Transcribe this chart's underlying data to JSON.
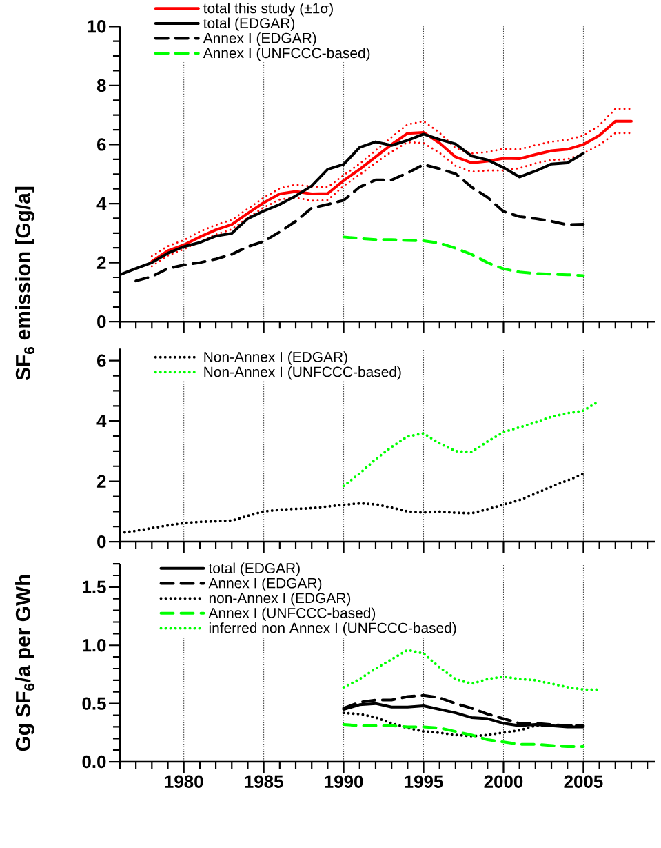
{
  "chart_data": [
    {
      "type": "line",
      "ylabel": "SF$_{6}$ emission [Gg/a]",
      "xlim": [
        1976,
        2009.5
      ],
      "ylim": [
        0,
        10
      ],
      "grid": "x",
      "legend": "top left",
      "tick_labels": "y",
      "xticks": [
        {
          "value": 1976,
          "label": null
        },
        {
          "value": 1977,
          "label": null
        },
        {
          "value": 1978,
          "label": null
        },
        {
          "value": 1979,
          "label": null
        },
        1980,
        {
          "value": 1981,
          "label": null
        },
        {
          "value": 1982,
          "label": null
        },
        {
          "value": 1983,
          "label": null
        },
        {
          "value": 1984,
          "label": null
        },
        1985,
        {
          "value": 1986,
          "label": null
        },
        {
          "value": 1987,
          "label": null
        },
        {
          "value": 1988,
          "label": null
        },
        {
          "value": 1989,
          "label": null
        },
        1990,
        {
          "value": 1991,
          "label": null
        },
        {
          "value": 1992,
          "label": null
        },
        {
          "value": 1993,
          "label": null
        },
        {
          "value": 1994,
          "label": null
        },
        1995,
        {
          "value": 1996,
          "label": null
        },
        {
          "value": 1997,
          "label": null
        },
        {
          "value": 1998,
          "label": null
        },
        {
          "value": 1999,
          "label": null
        },
        2000,
        {
          "value": 2001,
          "label": null
        },
        {
          "value": 2002,
          "label": null
        },
        {
          "value": 2003,
          "label": null
        },
        {
          "value": 2004,
          "label": null
        },
        2005,
        {
          "value": 2006,
          "label": null
        },
        {
          "value": 2007,
          "label": null
        },
        {
          "value": 2008,
          "label": null
        },
        {
          "value": 2009,
          "label": null
        }
      ],
      "yticks": [
        0,
        {
          "value": 0.5,
          "label": null
        },
        {
          "value": 1,
          "label": null
        },
        {
          "value": 1.5,
          "label": null
        },
        2,
        {
          "value": 2.5,
          "label": null
        },
        {
          "value": 3,
          "label": null
        },
        {
          "value": 3.5,
          "label": null
        },
        4,
        {
          "value": 4.5,
          "label": null
        },
        {
          "value": 5,
          "label": null
        },
        {
          "value": 5.5,
          "label": null
        },
        6,
        {
          "value": 6.5,
          "label": null
        },
        {
          "value": 7,
          "label": null
        },
        {
          "value": 7.5,
          "label": null
        },
        8,
        {
          "value": 8.5,
          "label": null
        },
        {
          "value": 9,
          "label": null
        },
        {
          "value": 9.5,
          "label": null
        },
        10
      ],
      "series": [
        {
          "name": "total this study (±1σ)",
          "color": "#ff0000",
          "line_style": "solid",
          "x": [
            1978,
            1979,
            1980,
            1981,
            1982,
            1983,
            1984,
            1985,
            1986,
            1987,
            1988,
            1989,
            1990,
            1991,
            1992,
            1993,
            1994,
            1995,
            1996,
            1997,
            1998,
            1999,
            2000,
            2001,
            2002,
            2003,
            2004,
            2005,
            2006,
            2007,
            2008
          ],
          "values": [
            2.04,
            2.4,
            2.6,
            2.87,
            3.11,
            3.29,
            3.67,
            4.03,
            4.33,
            4.41,
            4.33,
            4.34,
            4.78,
            5.16,
            5.58,
            6.0,
            6.38,
            6.41,
            6.05,
            5.58,
            5.38,
            5.44,
            5.53,
            5.52,
            5.66,
            5.79,
            5.84,
            6.0,
            6.31,
            6.79,
            6.79
          ]
        },
        {
          "color": "#ff0000",
          "line_style": "dotted",
          "x": [
            1978,
            1979,
            1980,
            1981,
            1982,
            1983,
            1984,
            1985,
            1986,
            1987,
            1988,
            1989,
            1990,
            1991,
            1992,
            1993,
            1994,
            1995,
            1996,
            1997,
            1998,
            1999,
            2000,
            2001,
            2002,
            2003,
            2004,
            2005,
            2006,
            2007,
            2008
          ],
          "values": [
            2.22,
            2.56,
            2.76,
            3.05,
            3.28,
            3.45,
            3.82,
            4.2,
            4.52,
            4.64,
            4.58,
            4.56,
            4.96,
            5.35,
            5.8,
            6.25,
            6.68,
            6.79,
            6.4,
            5.88,
            5.7,
            5.75,
            5.85,
            5.84,
            5.98,
            6.1,
            6.16,
            6.3,
            6.65,
            7.21,
            7.21
          ]
        },
        {
          "color": "#ff0000",
          "line_style": "dotted",
          "x": [
            1978,
            1979,
            1980,
            1981,
            1982,
            1983,
            1984,
            1985,
            1986,
            1987,
            1988,
            1989,
            1990,
            1991,
            1992,
            1993,
            1994,
            1995,
            1996,
            1997,
            1998,
            1999,
            2000,
            2001,
            2002,
            2003,
            2004,
            2005,
            2006,
            2007,
            2008
          ],
          "values": [
            1.88,
            2.24,
            2.46,
            2.7,
            2.95,
            3.13,
            3.52,
            3.87,
            4.14,
            4.2,
            4.1,
            4.12,
            4.6,
            4.98,
            5.38,
            5.76,
            6.08,
            6.05,
            5.72,
            5.28,
            5.08,
            5.12,
            5.12,
            5.2,
            5.36,
            5.48,
            5.5,
            5.7,
            5.98,
            6.39,
            6.39
          ]
        },
        {
          "name": "total (EDGAR)",
          "color": "#000000",
          "line_style": "solid",
          "x": [
            1976,
            1977,
            1978,
            1979,
            1980,
            1981,
            1982,
            1983,
            1984,
            1985,
            1986,
            1987,
            1988,
            1989,
            1990,
            1991,
            1992,
            1993,
            1994,
            1995,
            1996,
            1997,
            1998,
            1999,
            2000,
            2001,
            2002,
            2003,
            2004,
            2005
          ],
          "values": [
            1.59,
            1.8,
            2.0,
            2.32,
            2.54,
            2.68,
            2.9,
            2.99,
            3.49,
            3.75,
            3.97,
            4.26,
            4.6,
            5.16,
            5.33,
            5.9,
            6.09,
            5.97,
            6.14,
            6.35,
            6.17,
            6.02,
            5.61,
            5.48,
            5.22,
            4.9,
            5.1,
            5.34,
            5.38,
            5.7
          ]
        },
        {
          "name": "Annex I (EDGAR)",
          "color": "#000000",
          "line_style": "dashed",
          "x": [
            1977,
            1978,
            1979,
            1980,
            1981,
            1982,
            1983,
            1984,
            1985,
            1986,
            1987,
            1988,
            1989,
            1990,
            1991,
            1992,
            1993,
            1994,
            1995,
            1996,
            1997,
            1998,
            1999,
            2000,
            2001,
            2002,
            2003,
            2004,
            2005
          ],
          "values": [
            1.38,
            1.53,
            1.8,
            1.92,
            2.0,
            2.12,
            2.28,
            2.54,
            2.72,
            3.04,
            3.4,
            3.85,
            3.97,
            4.11,
            4.56,
            4.8,
            4.8,
            5.04,
            5.32,
            5.18,
            5.01,
            4.56,
            4.21,
            3.73,
            3.56,
            3.49,
            3.4,
            3.28,
            3.3
          ]
        },
        {
          "name": "Annex I (UNFCCC-based)",
          "color": "#00ff00",
          "line_style": "dashed",
          "x": [
            1990,
            1991,
            1992,
            1993,
            1994,
            1995,
            1996,
            1997,
            1998,
            1999,
            2000,
            2001,
            2002,
            2003,
            2004,
            2005
          ],
          "values": [
            2.87,
            2.82,
            2.78,
            2.78,
            2.75,
            2.74,
            2.66,
            2.49,
            2.28,
            2.0,
            1.79,
            1.68,
            1.63,
            1.61,
            1.59,
            1.56
          ]
        }
      ]
    },
    {
      "type": "line",
      "xlim": [
        1976,
        2009.5
      ],
      "ylim": [
        0,
        6.4
      ],
      "grid": "x",
      "legend": "top left",
      "tick_labels": "y",
      "xticks": [
        {
          "value": 1976,
          "label": null
        },
        {
          "value": 1977,
          "label": null
        },
        {
          "value": 1978,
          "label": null
        },
        {
          "value": 1979,
          "label": null
        },
        1980,
        {
          "value": 1981,
          "label": null
        },
        {
          "value": 1982,
          "label": null
        },
        {
          "value": 1983,
          "label": null
        },
        {
          "value": 1984,
          "label": null
        },
        1985,
        {
          "value": 1986,
          "label": null
        },
        {
          "value": 1987,
          "label": null
        },
        {
          "value": 1988,
          "label": null
        },
        {
          "value": 1989,
          "label": null
        },
        1990,
        {
          "value": 1991,
          "label": null
        },
        {
          "value": 1992,
          "label": null
        },
        {
          "value": 1993,
          "label": null
        },
        {
          "value": 1994,
          "label": null
        },
        1995,
        {
          "value": 1996,
          "label": null
        },
        {
          "value": 1997,
          "label": null
        },
        {
          "value": 1998,
          "label": null
        },
        {
          "value": 1999,
          "label": null
        },
        2000,
        {
          "value": 2001,
          "label": null
        },
        {
          "value": 2002,
          "label": null
        },
        {
          "value": 2003,
          "label": null
        },
        {
          "value": 2004,
          "label": null
        },
        2005,
        {
          "value": 2006,
          "label": null
        },
        {
          "value": 2007,
          "label": null
        },
        {
          "value": 2008,
          "label": null
        },
        {
          "value": 2009,
          "label": null
        }
      ],
      "yticks": [
        0,
        {
          "value": 0.5,
          "label": null
        },
        {
          "value": 1,
          "label": null
        },
        {
          "value": 1.5,
          "label": null
        },
        2,
        {
          "value": 2.5,
          "label": null
        },
        {
          "value": 3,
          "label": null
        },
        {
          "value": 3.5,
          "label": null
        },
        4,
        {
          "value": 4.5,
          "label": null
        },
        {
          "value": 5,
          "label": null
        },
        {
          "value": 5.5,
          "label": null
        },
        6
      ],
      "series": [
        {
          "name": "Non-Annex I (EDGAR)",
          "color": "#000000",
          "line_style": "dotted",
          "x": [
            1976,
            1977,
            1978,
            1979,
            1980,
            1981,
            1982,
            1983,
            1984,
            1985,
            1986,
            1987,
            1988,
            1989,
            1990,
            1991,
            1992,
            1993,
            1994,
            1995,
            1996,
            1997,
            1998,
            1999,
            2000,
            2001,
            2002,
            2003,
            2004,
            2005
          ],
          "values": [
            0.29,
            0.36,
            0.45,
            0.54,
            0.62,
            0.66,
            0.68,
            0.7,
            0.86,
            1.0,
            1.06,
            1.09,
            1.11,
            1.17,
            1.22,
            1.27,
            1.24,
            1.13,
            1.0,
            0.97,
            1.0,
            0.96,
            0.94,
            1.08,
            1.23,
            1.38,
            1.59,
            1.83,
            2.03,
            2.25
          ]
        },
        {
          "name": "Non-Annex I (UNFCCC-based)",
          "color": "#00ff00",
          "line_style": "dotted",
          "x": [
            1990,
            1991,
            1992,
            1993,
            1994,
            1995,
            1996,
            1997,
            1998,
            1999,
            2000,
            2001,
            2002,
            2003,
            2004,
            2005,
            2006
          ],
          "values": [
            1.85,
            2.26,
            2.73,
            3.14,
            3.49,
            3.59,
            3.26,
            3.0,
            2.97,
            3.32,
            3.63,
            3.79,
            3.96,
            4.14,
            4.26,
            4.34,
            4.67
          ]
        }
      ]
    },
    {
      "type": "line",
      "ylabel": "Gg SF$_{6}$/a per GWh",
      "xlim": [
        1976,
        2009.5
      ],
      "ylim": [
        0,
        1.7
      ],
      "grid": "x",
      "legend": "top left",
      "xticks": [
        {
          "value": 1976,
          "label": null
        },
        {
          "value": 1977,
          "label": null
        },
        {
          "value": 1978,
          "label": null
        },
        {
          "value": 1979,
          "label": null
        },
        1980,
        {
          "value": 1981,
          "label": null
        },
        {
          "value": 1982,
          "label": null
        },
        {
          "value": 1983,
          "label": null
        },
        {
          "value": 1984,
          "label": null
        },
        1985,
        {
          "value": 1986,
          "label": null
        },
        {
          "value": 1987,
          "label": null
        },
        {
          "value": 1988,
          "label": null
        },
        {
          "value": 1989,
          "label": null
        },
        1990,
        {
          "value": 1991,
          "label": null
        },
        {
          "value": 1992,
          "label": null
        },
        {
          "value": 1993,
          "label": null
        },
        {
          "value": 1994,
          "label": null
        },
        1995,
        {
          "value": 1996,
          "label": null
        },
        {
          "value": 1997,
          "label": null
        },
        {
          "value": 1998,
          "label": null
        },
        {
          "value": 1999,
          "label": null
        },
        2000,
        {
          "value": 2001,
          "label": null
        },
        {
          "value": 2002,
          "label": null
        },
        {
          "value": 2003,
          "label": null
        },
        {
          "value": 2004,
          "label": null
        },
        2005,
        {
          "value": 2006,
          "label": null
        },
        {
          "value": 2007,
          "label": null
        },
        {
          "value": 2008,
          "label": null
        },
        {
          "value": 2009,
          "label": null
        }
      ],
      "yticks": [
        {
          "value": 0,
          "label": "0.0"
        },
        {
          "value": 0.1,
          "label": null
        },
        {
          "value": 0.2,
          "label": null
        },
        {
          "value": 0.3,
          "label": null
        },
        {
          "value": 0.4,
          "label": null
        },
        {
          "value": 0.5,
          "label": "0.5"
        },
        {
          "value": 0.6,
          "label": null
        },
        {
          "value": 0.7,
          "label": null
        },
        {
          "value": 0.8,
          "label": null
        },
        {
          "value": 0.9,
          "label": null
        },
        {
          "value": 1,
          "label": "1.0"
        },
        {
          "value": 1.1,
          "label": null
        },
        {
          "value": 1.2,
          "label": null
        },
        {
          "value": 1.3,
          "label": null
        },
        {
          "value": 1.4,
          "label": null
        },
        {
          "value": 1.5,
          "label": "1.5"
        },
        {
          "value": 1.6,
          "label": null
        },
        {
          "value": 1.7,
          "label": null
        }
      ],
      "series": [
        {
          "name": "total (EDGAR)",
          "color": "#000000",
          "line_style": "solid",
          "x": [
            1990,
            1991,
            1992,
            1993,
            1994,
            1995,
            1996,
            1997,
            1998,
            1999,
            2000,
            2001,
            2002,
            2003,
            2004,
            2005
          ],
          "values": [
            0.45,
            0.49,
            0.5,
            0.47,
            0.47,
            0.48,
            0.45,
            0.42,
            0.38,
            0.37,
            0.33,
            0.31,
            0.32,
            0.31,
            0.3,
            0.3
          ]
        },
        {
          "name": "Annex I (EDGAR)",
          "color": "#000000",
          "line_style": "dashed",
          "x": [
            1990,
            1991,
            1992,
            1993,
            1994,
            1995,
            1996,
            1997,
            1998,
            1999,
            2000,
            2001,
            2002,
            2003,
            2004,
            2005
          ],
          "values": [
            0.46,
            0.51,
            0.53,
            0.53,
            0.56,
            0.57,
            0.55,
            0.5,
            0.46,
            0.41,
            0.37,
            0.33,
            0.33,
            0.32,
            0.31,
            0.31
          ]
        },
        {
          "name": "non-Annex I (EDGAR)",
          "color": "#000000",
          "line_style": "dotted",
          "x": [
            1990,
            1991,
            1992,
            1993,
            1994,
            1995,
            1996,
            1997,
            1998,
            1999,
            2000,
            2001,
            2002,
            2003,
            2004,
            2005
          ],
          "values": [
            0.42,
            0.41,
            0.38,
            0.33,
            0.29,
            0.26,
            0.25,
            0.23,
            0.22,
            0.23,
            0.25,
            0.27,
            0.31,
            0.31,
            0.31,
            0.31
          ]
        },
        {
          "name": "Annex I (UNFCCC-based)",
          "color": "#00ff00",
          "line_style": "dashed",
          "x": [
            1990,
            1991,
            1992,
            1993,
            1994,
            1995,
            1996,
            1997,
            1998,
            1999,
            2000,
            2001,
            2002,
            2003,
            2004,
            2005
          ],
          "values": [
            0.32,
            0.31,
            0.31,
            0.31,
            0.3,
            0.3,
            0.29,
            0.26,
            0.23,
            0.19,
            0.17,
            0.15,
            0.15,
            0.14,
            0.13,
            0.13
          ]
        },
        {
          "name": "inferred non Annex I (UNFCCC-based)",
          "color": "#00ff00",
          "line_style": "dotted",
          "x": [
            1990,
            1991,
            1992,
            1993,
            1994,
            1995,
            1996,
            1997,
            1998,
            1999,
            2000,
            2001,
            2002,
            2003,
            2004,
            2005,
            2006
          ],
          "values": [
            0.64,
            0.71,
            0.8,
            0.88,
            0.96,
            0.93,
            0.81,
            0.71,
            0.67,
            0.71,
            0.73,
            0.71,
            0.7,
            0.67,
            0.64,
            0.62,
            0.62
          ]
        }
      ]
    }
  ]
}
